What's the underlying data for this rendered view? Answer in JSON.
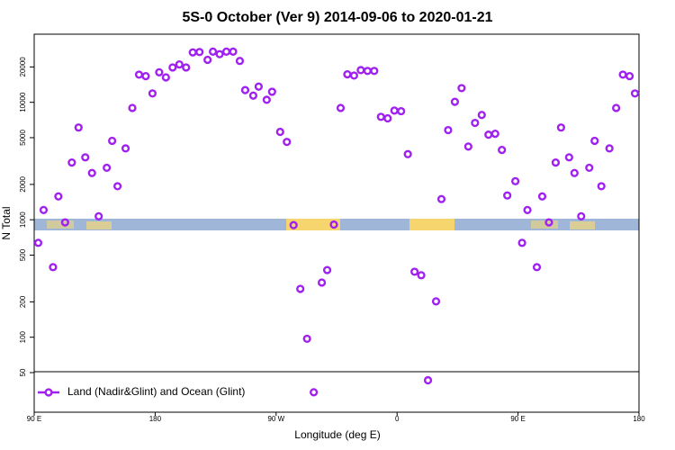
{
  "chart_data": {
    "type": "scatter",
    "title": "5S-0 October (Ver 9)   2014-09-06 to 2020-01-21",
    "xlabel": "Longitude (deg E)",
    "ylabel": "N Total",
    "log_y": true,
    "xlim": [
      90,
      540
    ],
    "ylim": [
      23,
      38000
    ],
    "xticks": [
      {
        "value": 90,
        "label": "90 E"
      },
      180,
      {
        "value": 270,
        "label": "90 W"
      },
      {
        "value": 360,
        "label": "0"
      },
      {
        "value": 450,
        "label": "90 E"
      },
      {
        "value": 540,
        "label": "180"
      }
    ],
    "yticks": [
      50,
      100,
      200,
      500,
      1000,
      2000,
      5000,
      10000,
      20000
    ],
    "legend": "bottom-left",
    "series": [
      {
        "name": "Land (Nadir&Glint) and Ocean (Glint)",
        "color": "#a020f0",
        "x": [
          93,
          97,
          104,
          108,
          113,
          118,
          123,
          128,
          133,
          138,
          144,
          148,
          152,
          158,
          163,
          168,
          173,
          178,
          183,
          188,
          193,
          198,
          203,
          208,
          213,
          219,
          223,
          228,
          233,
          238,
          243,
          247,
          253,
          257,
          263,
          267,
          273,
          278,
          283,
          288,
          293,
          298,
          304,
          308,
          313,
          318,
          323,
          328,
          333,
          338,
          343,
          348,
          353,
          358,
          363,
          368,
          373,
          378,
          383,
          389,
          393,
          398,
          403,
          408,
          413,
          418,
          423,
          428,
          433,
          438,
          442,
          448,
          453,
          457,
          464,
          468,
          473,
          478,
          482,
          488,
          492,
          497,
          503,
          507,
          512,
          518,
          523,
          528,
          533,
          537
        ],
        "values": [
          636,
          1210,
          395,
          1580,
          950,
          3070,
          6100,
          3400,
          2500,
          1070,
          2770,
          4700,
          1930,
          4050,
          8950,
          17200,
          16700,
          11900,
          18000,
          16300,
          19800,
          21000,
          19800,
          26600,
          26800,
          23000,
          27000,
          25700,
          27000,
          27000,
          22500,
          12700,
          11400,
          13600,
          10500,
          12300,
          5600,
          4600,
          900,
          258,
          97,
          34,
          292,
          373,
          910,
          8950,
          17300,
          16900,
          18800,
          18500,
          18500,
          7520,
          7300,
          8500,
          8400,
          3620,
          361,
          337,
          43,
          202,
          1500,
          5800,
          10100,
          13200,
          4200,
          6680,
          7800,
          5300,
          5400,
          3930,
          1610,
          2130,
          636,
          1210,
          395,
          1580,
          950,
          3070,
          6100,
          3400,
          2500,
          1070,
          2770,
          4700,
          1930,
          4050,
          8950,
          17200,
          16700,
          11900
        ]
      }
    ]
  }
}
